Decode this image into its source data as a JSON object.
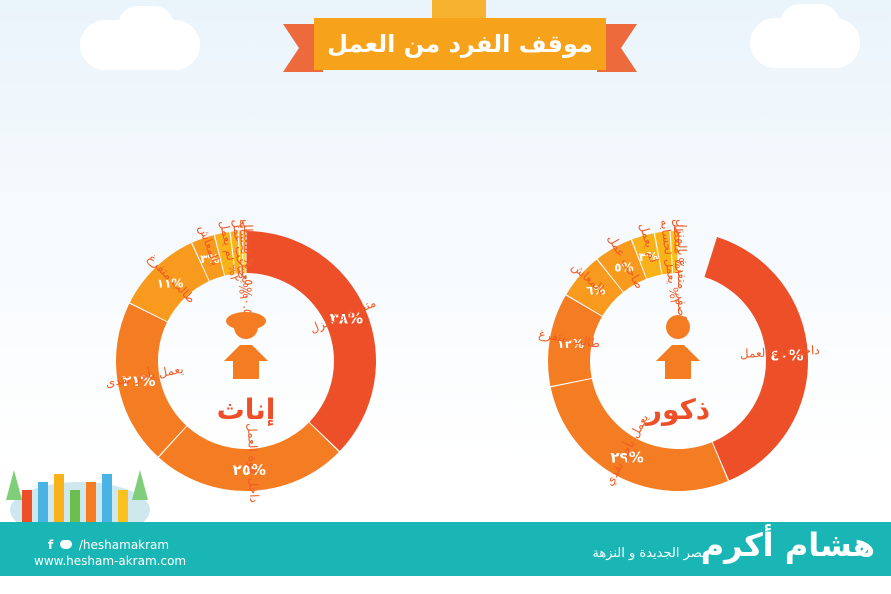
{
  "title": "موقف الفرد من العمل",
  "colors": {
    "c1": "#ed4f29",
    "c2": "#f47c22",
    "c3": "#f79a1e",
    "c4": "#f8b21a",
    "c5": "#f9c21c",
    "c6": "#f9d32a",
    "label": "#f15a24",
    "teal": "#19b6b5"
  },
  "chart_data": [
    {
      "type": "pie",
      "center_label": "ذكور",
      "slices": [
        {
          "label": "داخل قوة العمل",
          "value": 40,
          "value_label": "٤٠%"
        },
        {
          "label": "يعمل بأجر نقدي",
          "value": 29,
          "value_label": "٢٩%"
        },
        {
          "label": "طالب متفرغ",
          "value": 12,
          "value_label": "١٢%"
        },
        {
          "label": "بالمعاش",
          "value": 6,
          "value_label": "٦%"
        },
        {
          "label": "صاحب عمل",
          "value": 5,
          "value_label": "٥%"
        },
        {
          "label": "لم يعمل",
          "value": 3,
          "value_label": "٣%"
        },
        {
          "label": "يعمل لحسابه",
          "value": 2,
          "value_label": "٢%"
        },
        {
          "label": "متعطل",
          "value": 1,
          "value_label": "١%"
        },
        {
          "label": "متفرغ بالمنزل",
          "value": 0,
          "value_label": "%صفر"
        }
      ]
    },
    {
      "type": "pie",
      "center_label": "إناث",
      "slices": [
        {
          "label": "متفرغ بالمنزل",
          "value": 38,
          "value_label": "٣٨%"
        },
        {
          "label": "داخل قوة العمل",
          "value": 25,
          "value_label": "٢٥%"
        },
        {
          "label": "يعمل بأجر نقدى",
          "value": 21,
          "value_label": "٢١%"
        },
        {
          "label": "طالب متفرغ",
          "value": 11,
          "value_label": "١١%"
        },
        {
          "label": "بالمعاش",
          "value": 3,
          "value_label": "٣%"
        },
        {
          "label": "لم يعمل",
          "value": 2,
          "value_label": "٢%"
        },
        {
          "label": "صاحب عمل",
          "value": 1,
          "value_label": "١%"
        },
        {
          "label": "يعمل لحسابه",
          "value": 0.5,
          "value_label": "٠.٥%"
        },
        {
          "label": "متعطل",
          "value": 0.5,
          "value_label": "٠.٥%"
        }
      ]
    }
  ],
  "footer": {
    "brand": "هشام أكرم",
    "tagline": "مصر الجديدة و النزهة",
    "social": "/heshamakram",
    "social_prefix": "f",
    "website": "www.hesham-akram.com"
  }
}
